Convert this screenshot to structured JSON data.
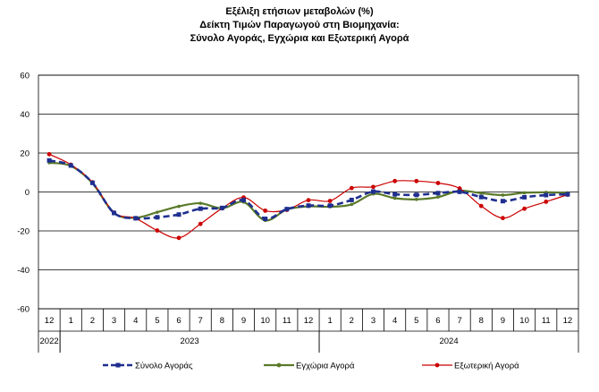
{
  "chart_data": {
    "type": "line",
    "title": [
      "Εξέλιξη ετήσιων μεταβολών (%)",
      "Δείκτη Τιμών Παραγωγού στη Βιομηχανία:",
      "Σύνολο Αγοράς, Εγχώρια και Εξωτερική Αγορά"
    ],
    "xlabel": "",
    "ylabel": "",
    "ylim": [
      -60,
      60
    ],
    "yticks": [
      -60,
      -40,
      -20,
      0,
      20,
      40,
      60
    ],
    "grid": true,
    "legend": "bottom",
    "months": [
      "12",
      "1",
      "2",
      "3",
      "4",
      "5",
      "6",
      "7",
      "8",
      "9",
      "10",
      "11",
      "12",
      "1",
      "2",
      "3",
      "4",
      "5",
      "6",
      "7",
      "8",
      "9",
      "10",
      "11",
      "12"
    ],
    "year_groups": [
      {
        "label": "2022",
        "start": 0,
        "end": 0
      },
      {
        "label": "2023",
        "start": 1,
        "end": 12
      },
      {
        "label": "2024",
        "start": 13,
        "end": 24
      }
    ],
    "series": [
      {
        "name": "Σύνολο Αγοράς",
        "color": "#1f2f8f",
        "style": "dashed-square",
        "values": [
          16.2,
          13.6,
          4.7,
          -10.8,
          -13.5,
          -13.0,
          -11.6,
          -8.6,
          -8.2,
          -4.2,
          -13.8,
          -8.8,
          -7.0,
          -7.0,
          -4.1,
          0.2,
          -1.2,
          -1.5,
          -0.6,
          0.1,
          -2.6,
          -4.7,
          -2.7,
          -1.6,
          -1.2
        ]
      },
      {
        "name": "Εγχώρια Αγορά",
        "color": "#5a7a2a",
        "style": "solid-dot",
        "values": [
          15.0,
          13.4,
          4.5,
          -10.8,
          -13.2,
          -10.4,
          -7.4,
          -5.8,
          -8.4,
          -5.2,
          -14.6,
          -9.0,
          -7.4,
          -7.6,
          -6.4,
          -1.0,
          -3.2,
          -3.8,
          -2.6,
          0.6,
          -0.6,
          -1.6,
          -0.4,
          -0.2,
          -0.4
        ]
      },
      {
        "name": "Εξωτερική Αγορά",
        "color": "#cc0000",
        "style": "solid-dot",
        "values": [
          19.4,
          14.0,
          5.0,
          -10.6,
          -13.6,
          -19.8,
          -23.6,
          -16.4,
          -8.4,
          -2.8,
          -9.6,
          -9.2,
          -4.2,
          -4.6,
          2.0,
          2.6,
          5.6,
          5.6,
          4.6,
          1.8,
          -7.2,
          -13.4,
          -8.6,
          -5.0,
          -1.4
        ]
      }
    ]
  }
}
